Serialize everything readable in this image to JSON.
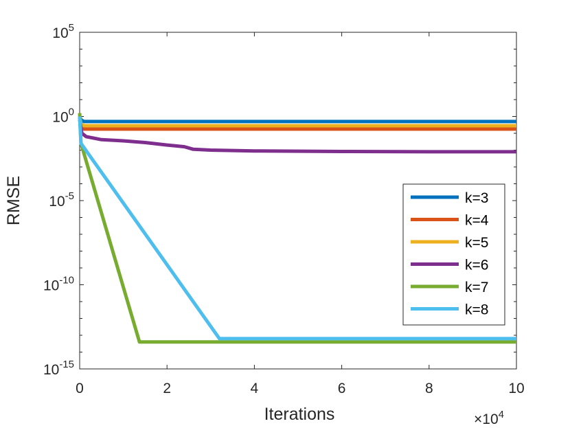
{
  "chart_data": {
    "type": "line",
    "title": "",
    "xlabel": "Iterations",
    "ylabel": "RMSE",
    "x_multiplier_label": "×10",
    "x_multiplier_exp": "4",
    "xlim": [
      0,
      10
    ],
    "ylim_log10": [
      -15,
      5
    ],
    "yscale": "log",
    "x_ticks": [
      {
        "value": 0,
        "label": "0"
      },
      {
        "value": 2,
        "label": "2"
      },
      {
        "value": 4,
        "label": "4"
      },
      {
        "value": 6,
        "label": "6"
      },
      {
        "value": 8,
        "label": "8"
      },
      {
        "value": 10,
        "label": "10"
      }
    ],
    "y_ticks": [
      {
        "exp": 5,
        "base": "10",
        "sup": "5"
      },
      {
        "exp": 0,
        "base": "10",
        "sup": "0"
      },
      {
        "exp": -5,
        "base": "10",
        "sup": "-5"
      },
      {
        "exp": -10,
        "base": "10",
        "sup": "-10"
      },
      {
        "exp": -15,
        "base": "10",
        "sup": "-15"
      }
    ],
    "legend_position": "right",
    "series": [
      {
        "name": "k=3",
        "color": "#0072BD",
        "points": [
          [
            0,
            0.0
          ],
          [
            0.03,
            -0.2
          ],
          [
            0.1,
            -0.3
          ],
          [
            10,
            -0.3
          ]
        ]
      },
      {
        "name": "k=4",
        "color": "#D95319",
        "points": [
          [
            0,
            0.0
          ],
          [
            0.03,
            -0.6
          ],
          [
            0.1,
            -0.75
          ],
          [
            10,
            -0.75
          ]
        ]
      },
      {
        "name": "k=5",
        "color": "#EDB120",
        "points": [
          [
            0,
            0.0
          ],
          [
            0.03,
            -0.45
          ],
          [
            0.1,
            -0.55
          ],
          [
            10,
            -0.55
          ]
        ]
      },
      {
        "name": "k=6",
        "color": "#7E2F8E",
        "points": [
          [
            0,
            -0.2
          ],
          [
            0.05,
            -1.0
          ],
          [
            0.15,
            -1.2
          ],
          [
            0.5,
            -1.38
          ],
          [
            1.0,
            -1.45
          ],
          [
            1.5,
            -1.55
          ],
          [
            2.0,
            -1.7
          ],
          [
            2.4,
            -1.8
          ],
          [
            2.6,
            -1.95
          ],
          [
            3.0,
            -2.0
          ],
          [
            4.0,
            -2.05
          ],
          [
            6.0,
            -2.08
          ],
          [
            8.0,
            -2.1
          ],
          [
            10,
            -2.1
          ]
        ]
      },
      {
        "name": "k=7",
        "color": "#77AC30",
        "points": [
          [
            0,
            0.2
          ],
          [
            0.03,
            -1.6
          ],
          [
            1.37,
            -13.4
          ],
          [
            10,
            -13.4
          ]
        ]
      },
      {
        "name": "k=8",
        "color": "#4DBEEE",
        "points": [
          [
            0,
            0.0
          ],
          [
            0.03,
            -1.6
          ],
          [
            3.2,
            -13.2
          ],
          [
            10,
            -13.2
          ]
        ]
      }
    ]
  }
}
